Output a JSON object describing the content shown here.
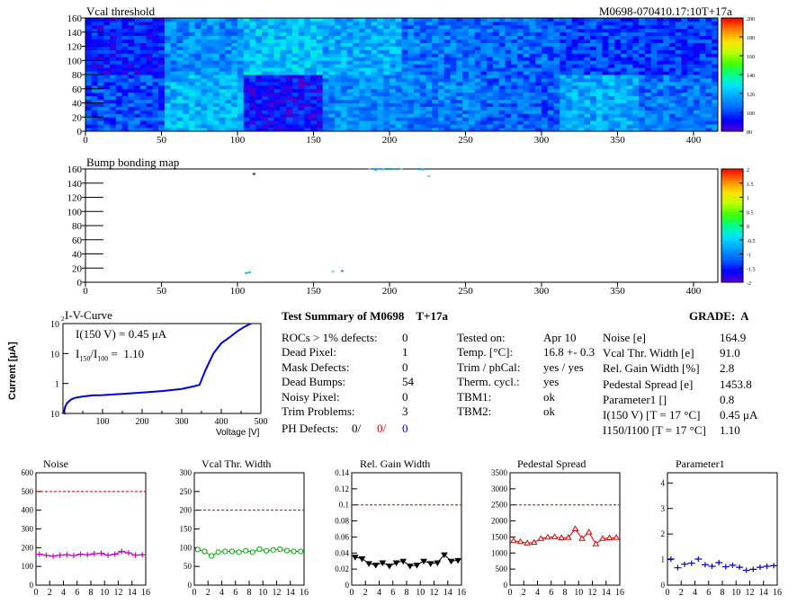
{
  "module": "M0698",
  "header": {
    "map_title": "Vcal threshold",
    "module_label": "M0698-070410.17:10T+17a"
  },
  "bump": {
    "title": "Bump bonding map"
  },
  "iv": {
    "title": "I-V-Curve",
    "i150": "I(150 V) = 0.45 μA",
    "ratio_label": "I150/I100 = 1.10",
    "ylabel": "Current [μA]",
    "xlabel": "Voltage [V]"
  },
  "summary": {
    "title": "Test Summary of M0698",
    "tag": "T+17a",
    "grade_label": "GRADE:",
    "grade": "A",
    "left": [
      {
        "label": "ROCs > 1% defects:",
        "value": "0"
      },
      {
        "label": "Dead Pixel:",
        "value": "1"
      },
      {
        "label": "Mask Defects:",
        "value": "0"
      },
      {
        "label": "Dead Bumps:",
        "value": "54"
      },
      {
        "label": "Noisy Pixel:",
        "value": "0"
      },
      {
        "label": "Trim Problems:",
        "value": "3"
      }
    ],
    "ph": {
      "label": "PH Defects:",
      "v1": "0/",
      "v2": "0/",
      "v3": "0"
    },
    "mid": [
      {
        "label": "Tested on:",
        "value": "Apr 10"
      },
      {
        "label": "Temp. [°C]:",
        "value": "16.8 +- 0.3"
      },
      {
        "label": "Trim / phCal:",
        "value": "yes / yes"
      },
      {
        "label": "Therm. cycl.:",
        "value": "yes"
      },
      {
        "label": "TBM1:",
        "value": "ok"
      },
      {
        "label": "TBM2:",
        "value": "ok"
      }
    ],
    "right": [
      {
        "label": "Noise [e]",
        "value": "164.9"
      },
      {
        "label": "Vcal Thr. Width [e]",
        "value": "91.0"
      },
      {
        "label": "Rel. Gain Width [%]",
        "value": "2.8"
      },
      {
        "label": "Pedestal Spread [e]",
        "value": "1453.8"
      },
      {
        "label": "Parameter1 []",
        "value": "0.8"
      },
      {
        "label": "I(150 V) [T = 17 °C]",
        "value": "0.45 μA"
      },
      {
        "label": "I150/I100 [T = 17 °C]",
        "value": "1.10"
      }
    ]
  },
  "chart_data": [
    {
      "type": "heatmap",
      "title": "Vcal threshold",
      "xlim": [
        0,
        416
      ],
      "ylim": [
        0,
        160
      ],
      "xticks": [
        0,
        50,
        100,
        150,
        200,
        250,
        300,
        350,
        400
      ],
      "yticks": [
        0,
        20,
        40,
        60,
        80,
        100,
        120,
        140,
        160
      ],
      "zlim": [
        80,
        200
      ],
      "zticks": [
        80,
        100,
        120,
        140,
        160,
        180,
        200
      ],
      "roc_means_top": [
        95,
        112,
        122,
        118,
        108,
        105,
        100,
        98
      ],
      "roc_means_bottom": [
        102,
        120,
        92,
        112,
        110,
        105,
        118,
        108
      ],
      "colors": [
        "#5a00c8",
        "#0000ff",
        "#0060ff",
        "#00a0ff",
        "#00e0ff",
        "#00ff90",
        "#40ff00",
        "#c0ff00",
        "#ffe000",
        "#ff8000",
        "#ff0000"
      ]
    },
    {
      "type": "heatmap",
      "title": "Bump bonding map",
      "xlim": [
        0,
        416
      ],
      "ylim": [
        0,
        160
      ],
      "xticks": [
        0,
        50,
        100,
        150,
        200,
        250,
        300,
        350,
        400
      ],
      "yticks": [
        0,
        20,
        40,
        60,
        80,
        100,
        120,
        140,
        160
      ],
      "zlim": [
        -2,
        2
      ],
      "zticks": [
        -2,
        -1.5,
        -1,
        -0.5,
        0,
        0.5,
        1,
        1.5,
        2
      ],
      "points": [
        [
          110,
          153
        ],
        [
          186,
          160
        ],
        [
          190,
          159
        ],
        [
          192,
          160
        ],
        [
          195,
          159
        ],
        [
          198,
          160
        ],
        [
          202,
          160
        ],
        [
          207,
          160
        ],
        [
          218,
          160
        ],
        [
          221,
          159
        ],
        [
          225,
          150
        ],
        [
          105,
          13
        ],
        [
          107,
          14
        ],
        [
          162,
          15
        ],
        [
          168,
          16
        ]
      ]
    },
    {
      "type": "line",
      "title": "I-V-Curve",
      "xlabel": "Voltage [V]",
      "ylabel": "Current [μA]",
      "xlim": [
        0,
        500
      ],
      "ylim": [
        0.1,
        100
      ],
      "yscale": "log",
      "xticks": [
        100,
        200,
        300,
        400,
        500
      ],
      "x": [
        2,
        5,
        10,
        20,
        30,
        50,
        75,
        100,
        150,
        200,
        250,
        300,
        330,
        345,
        360,
        380,
        400,
        420,
        440,
        460,
        475
      ],
      "y": [
        0.1,
        0.16,
        0.22,
        0.29,
        0.33,
        0.37,
        0.4,
        0.41,
        0.45,
        0.5,
        0.56,
        0.66,
        0.8,
        0.9,
        2.8,
        10,
        22,
        34,
        55,
        80,
        100
      ]
    },
    {
      "type": "line",
      "title": "Noise",
      "x": [
        0,
        1,
        2,
        3,
        4,
        5,
        6,
        7,
        8,
        9,
        10,
        11,
        12,
        13,
        14,
        15
      ],
      "y": [
        165,
        160,
        155,
        160,
        162,
        158,
        165,
        162,
        168,
        170,
        160,
        165,
        180,
        172,
        160,
        162
      ],
      "ylim": [
        0,
        600
      ],
      "yticks": [
        0,
        100,
        200,
        300,
        400,
        500,
        600
      ],
      "limit": 500,
      "color": "#cc00cc",
      "marker": "cross"
    },
    {
      "type": "line",
      "title": "Vcal Thr. Width",
      "x": [
        0,
        1,
        2,
        3,
        4,
        5,
        6,
        7,
        8,
        9,
        10,
        11,
        12,
        13,
        14,
        15
      ],
      "y": [
        95,
        90,
        78,
        88,
        90,
        90,
        88,
        92,
        88,
        96,
        92,
        94,
        96,
        92,
        90,
        90
      ],
      "ylim": [
        0,
        300
      ],
      "yticks": [
        0,
        50,
        100,
        150,
        200,
        250,
        300
      ],
      "limit": 200,
      "color": "#00aa00",
      "marker": "circle"
    },
    {
      "type": "line",
      "title": "Rel. Gain Width",
      "x": [
        0,
        1,
        2,
        3,
        4,
        5,
        6,
        7,
        8,
        9,
        10,
        11,
        12,
        13,
        14,
        15
      ],
      "y": [
        0.035,
        0.033,
        0.027,
        0.025,
        0.028,
        0.024,
        0.028,
        0.03,
        0.024,
        0.025,
        0.03,
        0.027,
        0.028,
        0.038,
        0.03,
        0.031
      ],
      "ylim": [
        0,
        0.14
      ],
      "yticks": [
        0,
        0.02,
        0.04,
        0.06,
        0.08,
        0.1,
        0.12,
        0.14
      ],
      "limit": 0.1,
      "color": "#000000",
      "marker": "tri-down"
    },
    {
      "type": "line",
      "title": "Pedestal Spread",
      "x": [
        0,
        1,
        2,
        3,
        4,
        5,
        6,
        7,
        8,
        9,
        10,
        11,
        12,
        13,
        14,
        15
      ],
      "y": [
        1380,
        1350,
        1310,
        1330,
        1450,
        1490,
        1500,
        1470,
        1480,
        1750,
        1450,
        1650,
        1280,
        1450,
        1470,
        1480
      ],
      "ylim": [
        0,
        3500
      ],
      "yticks": [
        0,
        500,
        1000,
        1500,
        2000,
        2500,
        3000,
        3500
      ],
      "limit": 2500,
      "color": "#dd0000",
      "marker": "tri-up"
    },
    {
      "type": "scatter",
      "title": "Parameter1",
      "x": [
        0,
        1,
        2,
        3,
        4,
        5,
        6,
        7,
        8,
        9,
        10,
        11,
        12,
        13,
        14,
        15
      ],
      "y": [
        1.02,
        0.68,
        0.82,
        0.86,
        1.02,
        0.8,
        0.74,
        0.88,
        0.72,
        0.78,
        0.7,
        0.58,
        0.62,
        0.7,
        0.74,
        0.76
      ],
      "ylim": [
        0,
        4.4
      ],
      "yticks": [
        0,
        1,
        2,
        3,
        4
      ],
      "color": "#0000cc",
      "marker": "cross"
    }
  ]
}
